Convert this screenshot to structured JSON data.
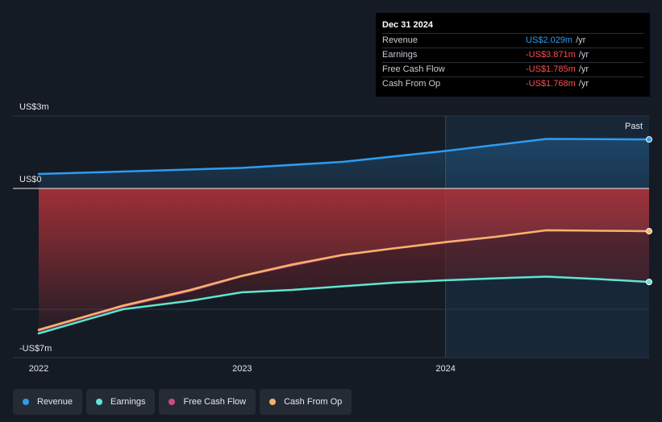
{
  "tooltip": {
    "date": "Dec 31 2024",
    "rows": [
      {
        "label": "Revenue",
        "value": "US$2.029m",
        "unit": "/yr",
        "color": "#2d9cf0"
      },
      {
        "label": "Earnings",
        "value": "-US$3.871m",
        "unit": "/yr",
        "color": "#ff4d4f"
      },
      {
        "label": "Free Cash Flow",
        "value": "-US$1.785m",
        "unit": "/yr",
        "color": "#ff4d4f"
      },
      {
        "label": "Cash From Op",
        "value": "-US$1.768m",
        "unit": "/yr",
        "color": "#ff4d4f"
      }
    ]
  },
  "legend": [
    {
      "label": "Revenue",
      "color": "#2d9cf0"
    },
    {
      "label": "Earnings",
      "color": "#5ee6d2"
    },
    {
      "label": "Free Cash Flow",
      "color": "#d1498a"
    },
    {
      "label": "Cash From Op",
      "color": "#f3b36c"
    }
  ],
  "chart_data": {
    "type": "line",
    "y_unit": "US$ m",
    "ylim": [
      -7,
      3
    ],
    "xlim": [
      "2022-01-01",
      "2024-12-31"
    ],
    "y_tick_labels": [
      {
        "value": 3,
        "label": "US$3m"
      },
      {
        "value": 0,
        "label": "US$0"
      },
      {
        "value": -7,
        "label": "-US$7m"
      }
    ],
    "x_tick_labels": [
      {
        "value": "2022-01-01",
        "label": "2022"
      },
      {
        "value": "2023-01-01",
        "label": "2023"
      },
      {
        "value": "2024-01-01",
        "label": "2024"
      }
    ],
    "past_label": "Past",
    "past_region_start": "2024-01-01",
    "series": [
      {
        "name": "Revenue",
        "color": "#2d9cf0",
        "points": [
          [
            "2022-01-01",
            0.6
          ],
          [
            "2022-06-01",
            0.7
          ],
          [
            "2022-12-31",
            0.85
          ],
          [
            "2023-06-30",
            1.1
          ],
          [
            "2023-12-31",
            1.55
          ],
          [
            "2024-03-31",
            1.8
          ],
          [
            "2024-06-30",
            2.05
          ],
          [
            "2024-09-30",
            2.04
          ],
          [
            "2024-12-31",
            2.029
          ]
        ]
      },
      {
        "name": "Earnings",
        "color": "#5ee6d2",
        "points": [
          [
            "2022-01-01",
            -6.0
          ],
          [
            "2022-06-01",
            -5.0
          ],
          [
            "2022-09-30",
            -4.65
          ],
          [
            "2022-12-31",
            -4.3
          ],
          [
            "2023-03-31",
            -4.2
          ],
          [
            "2023-06-30",
            -4.05
          ],
          [
            "2023-09-30",
            -3.9
          ],
          [
            "2023-12-31",
            -3.8
          ],
          [
            "2024-03-31",
            -3.72
          ],
          [
            "2024-06-30",
            -3.65
          ],
          [
            "2024-09-30",
            -3.75
          ],
          [
            "2024-12-31",
            -3.871
          ]
        ]
      },
      {
        "name": "Free Cash Flow",
        "color": "#d1498a",
        "points": [
          [
            "2022-01-01",
            -5.9
          ],
          [
            "2022-06-01",
            -4.9
          ],
          [
            "2022-09-30",
            -4.25
          ],
          [
            "2022-12-31",
            -3.65
          ],
          [
            "2023-03-31",
            -3.2
          ],
          [
            "2023-06-30",
            -2.78
          ],
          [
            "2023-09-30",
            -2.5
          ],
          [
            "2023-12-31",
            -2.25
          ],
          [
            "2024-03-31",
            -2.02
          ],
          [
            "2024-06-30",
            -1.75
          ],
          [
            "2024-09-30",
            -1.76
          ],
          [
            "2024-12-31",
            -1.785
          ]
        ]
      },
      {
        "name": "Cash From Op",
        "color": "#f3b36c",
        "points": [
          [
            "2022-01-01",
            -5.85
          ],
          [
            "2022-06-01",
            -4.85
          ],
          [
            "2022-09-30",
            -4.2
          ],
          [
            "2022-12-31",
            -3.62
          ],
          [
            "2023-03-31",
            -3.15
          ],
          [
            "2023-06-30",
            -2.75
          ],
          [
            "2023-09-30",
            -2.48
          ],
          [
            "2023-12-31",
            -2.22
          ],
          [
            "2024-03-31",
            -2.0
          ],
          [
            "2024-06-30",
            -1.73
          ],
          [
            "2024-09-30",
            -1.75
          ],
          [
            "2024-12-31",
            -1.768
          ]
        ]
      }
    ]
  }
}
